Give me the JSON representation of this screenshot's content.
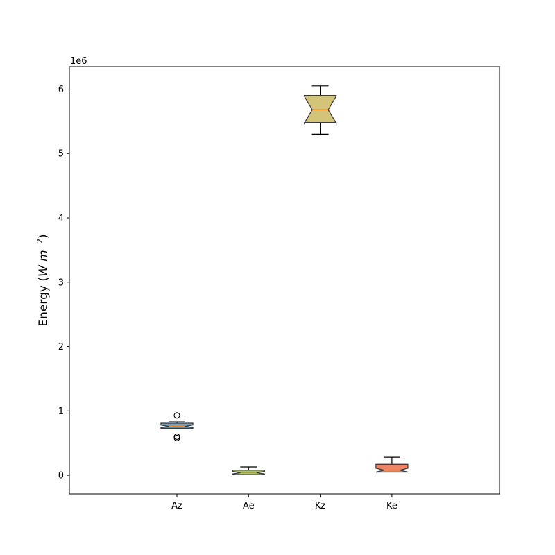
{
  "chart_data": {
    "type": "boxplot",
    "notched": true,
    "categories": [
      "Az",
      "Ae",
      "Kz",
      "Ke"
    ],
    "ylabel_text": "Energy (",
    "ylabel_math": "W m",
    "ylabel_exponent": "−2",
    "ylabel_close": ")",
    "offset_label": "1e6",
    "y_ticks": [
      0,
      1,
      2,
      3,
      4,
      5,
      6
    ],
    "ylim": [
      -0.29,
      6.35
    ],
    "y_scale_multiplier": 1000000,
    "boxes": [
      {
        "category": "Az",
        "whisker_low": 0.73,
        "q1": 0.73,
        "median": 0.76,
        "q3": 0.81,
        "whisker_high": 0.83,
        "notch_low": 0.74,
        "notch_high": 0.78,
        "fliers": [
          0.93,
          0.6,
          0.58
        ],
        "color": "#6fa8c8"
      },
      {
        "category": "Ae",
        "whisker_low": 0.01,
        "q1": 0.01,
        "median": 0.04,
        "q3": 0.08,
        "whisker_high": 0.13,
        "notch_low": 0.02,
        "notch_high": 0.06,
        "fliers": [],
        "color": "#a9c46a"
      },
      {
        "category": "Kz",
        "whisker_low": 5.3,
        "q1": 5.48,
        "median": 5.68,
        "q3": 5.9,
        "whisker_high": 6.05,
        "notch_low": 5.47,
        "notch_high": 5.89,
        "fliers": [],
        "color": "#d4c47a"
      },
      {
        "category": "Ke",
        "whisker_low": 0.05,
        "q1": 0.05,
        "median": 0.08,
        "q3": 0.17,
        "whisker_high": 0.28,
        "notch_low": 0.05,
        "notch_high": 0.11,
        "fliers": [],
        "color": "#ee8466"
      }
    ],
    "median_color": "#ff7f0e",
    "grid": false,
    "legend": "none"
  }
}
